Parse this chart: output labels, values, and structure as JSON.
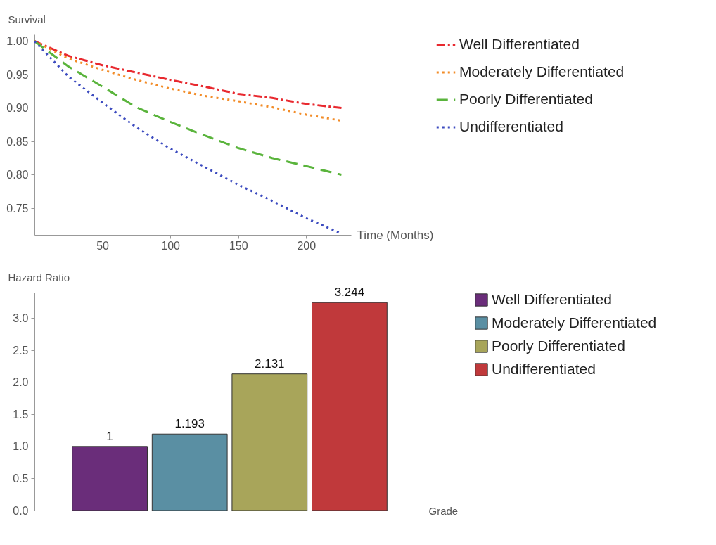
{
  "chart_data": [
    {
      "type": "line",
      "xlabel": "Time (Months)",
      "ylabel": "Survival",
      "x": [
        0,
        25,
        50,
        75,
        100,
        125,
        150,
        175,
        200,
        226
      ],
      "xlim": [
        0,
        233
      ],
      "xticks": [
        50,
        100,
        150,
        200
      ],
      "ylim": [
        0.71,
        1.01
      ],
      "yticks": [
        {
          "value": 0.75,
          "label": "0.75"
        },
        {
          "value": 0.8,
          "label": "0.80"
        },
        {
          "value": 0.85,
          "label": "0.85"
        },
        {
          "value": 0.9,
          "label": "0.90"
        },
        {
          "value": 0.95,
          "label": "0.95"
        },
        {
          "value": 1,
          "label": "1.00"
        }
      ],
      "grid": false,
      "legend": "right",
      "series": [
        {
          "name": "Well Differentiated",
          "color": "#e8292f",
          "line_style": "dashdot",
          "values": [
            1,
            0.978,
            0.964,
            0.953,
            0.942,
            0.932,
            0.921,
            0.915,
            0.906,
            0.9
          ]
        },
        {
          "name": "Moderately Differentiated",
          "color": "#f28c28",
          "line_style": "dotted",
          "values": [
            1,
            0.974,
            0.957,
            0.942,
            0.929,
            0.918,
            0.91,
            0.901,
            0.89,
            0.881
          ]
        },
        {
          "name": "Poorly Differentiated",
          "color": "#5ab43c",
          "line_style": "dashed",
          "values": [
            1,
            0.962,
            0.932,
            0.901,
            0.879,
            0.859,
            0.84,
            0.825,
            0.813,
            0.8
          ]
        },
        {
          "name": "Undifferentiated",
          "color": "#3c4bbf",
          "line_style": "dotted",
          "values": [
            1,
            0.947,
            0.908,
            0.871,
            0.839,
            0.812,
            0.785,
            0.761,
            0.735,
            0.712
          ]
        }
      ]
    },
    {
      "type": "bar",
      "xlabel": "Grade",
      "ylabel": "Hazard Ratio",
      "categories": [
        null
      ],
      "ylim": [
        0,
        3.4
      ],
      "yticks": [
        {
          "value": 0,
          "label": "0.0"
        },
        {
          "value": 0.5,
          "label": "0.5"
        },
        {
          "value": 1,
          "label": "1.0"
        },
        {
          "value": 1.5,
          "label": "1.5"
        },
        {
          "value": 2,
          "label": "2.0"
        },
        {
          "value": 2.5,
          "label": "2.5"
        },
        {
          "value": 3,
          "label": "3.0"
        }
      ],
      "grid": false,
      "legend": "right",
      "data_labels": true,
      "series": [
        {
          "name": "Well Differentiated",
          "color": "#6a2d7a",
          "values": [
            1
          ]
        },
        {
          "name": "Moderately Differentiated",
          "color": "#5a8fa3",
          "values": [
            1.193
          ]
        },
        {
          "name": "Poorly Differentiated",
          "color": "#a8a55a",
          "values": [
            2.131
          ]
        },
        {
          "name": "Undifferentiated",
          "color": "#c0393b",
          "values": [
            3.244
          ]
        }
      ]
    }
  ]
}
